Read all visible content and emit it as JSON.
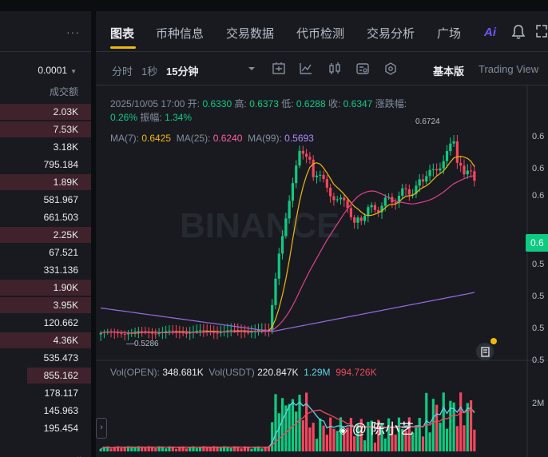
{
  "tabs": [
    {
      "label": "图表",
      "active": true
    },
    {
      "label": "币种信息"
    },
    {
      "label": "交易数据"
    },
    {
      "label": "代币检测"
    },
    {
      "label": "交易分析"
    },
    {
      "label": "广场"
    }
  ],
  "ai_label": "Ai",
  "toolbar": {
    "time_label": "分时",
    "one_sec": "1秒",
    "interval": "15分钟",
    "view_basic": "基本版",
    "view_tv": "Trading View"
  },
  "orderbook": {
    "precision": "0.0001",
    "volume_header": "成交额",
    "rows": [
      {
        "value": "2.03K",
        "fill": 1.0
      },
      {
        "value": "7.53K",
        "fill": 1.0
      },
      {
        "value": "3.18K",
        "fill": 0.0
      },
      {
        "value": "795.184",
        "fill": 0.0
      },
      {
        "value": "1.89K",
        "fill": 1.0
      },
      {
        "value": "581.967",
        "fill": 0.0
      },
      {
        "value": "661.503",
        "fill": 0.0
      },
      {
        "value": "2.25K",
        "fill": 1.0
      },
      {
        "value": "67.521",
        "fill": 0.0
      },
      {
        "value": "331.136",
        "fill": 0.0
      },
      {
        "value": "1.90K",
        "fill": 1.0
      },
      {
        "value": "3.95K",
        "fill": 1.0
      },
      {
        "value": "120.662",
        "fill": 0.0
      },
      {
        "value": "4.36K",
        "fill": 1.0
      },
      {
        "value": "535.473",
        "fill": 0.0
      },
      {
        "value": "855.162",
        "fill": 0.7
      },
      {
        "value": "178.117",
        "fill": 0.0
      },
      {
        "value": "145.963",
        "fill": 0.0
      },
      {
        "value": "195.454",
        "fill": 0.0
      }
    ]
  },
  "ohlc": {
    "datetime": "2025/10/05 17:00",
    "open_label": "开:",
    "open": "0.6330",
    "high_label": "高:",
    "high": "0.6373",
    "low_label": "低:",
    "low": "0.6288",
    "close_label": "收:",
    "close": "0.6347",
    "change_label": "涨跌幅:",
    "change": "0.26%",
    "amplitude_label": "振幅:",
    "amplitude": "1.34%"
  },
  "ma": {
    "ma7_label": "MA(7):",
    "ma7": "0.6425",
    "ma25_label": "MA(25):",
    "ma25": "0.6240",
    "ma99_label": "MA(99):",
    "ma99": "0.5693"
  },
  "volume": {
    "open_label": "Vol(OPEN):",
    "open_value": "348.681K",
    "usdt_label": "Vol(USDT)",
    "usdt_value": "220.847K",
    "v1": "1.29M",
    "v2": "994.726K"
  },
  "chart_marks": {
    "high_mark": "0.6724",
    "low_mark": "0.5286",
    "current_price": "0.6",
    "watermark_text": "BINANCE",
    "vol_axis": "2M"
  },
  "axis_labels": [
    "0.6",
    "0.6",
    "0.6",
    "0.5",
    "0.5",
    "0.5",
    "0.5"
  ],
  "watermark": {
    "name": "@ 陈小艺"
  },
  "colors": {
    "up": "#0ecb81",
    "down": "#f6465d",
    "accent": "#f0b90b",
    "ma7": "#f0b90b",
    "ma25": "#e0408a",
    "ma99": "#9c6ade"
  }
}
